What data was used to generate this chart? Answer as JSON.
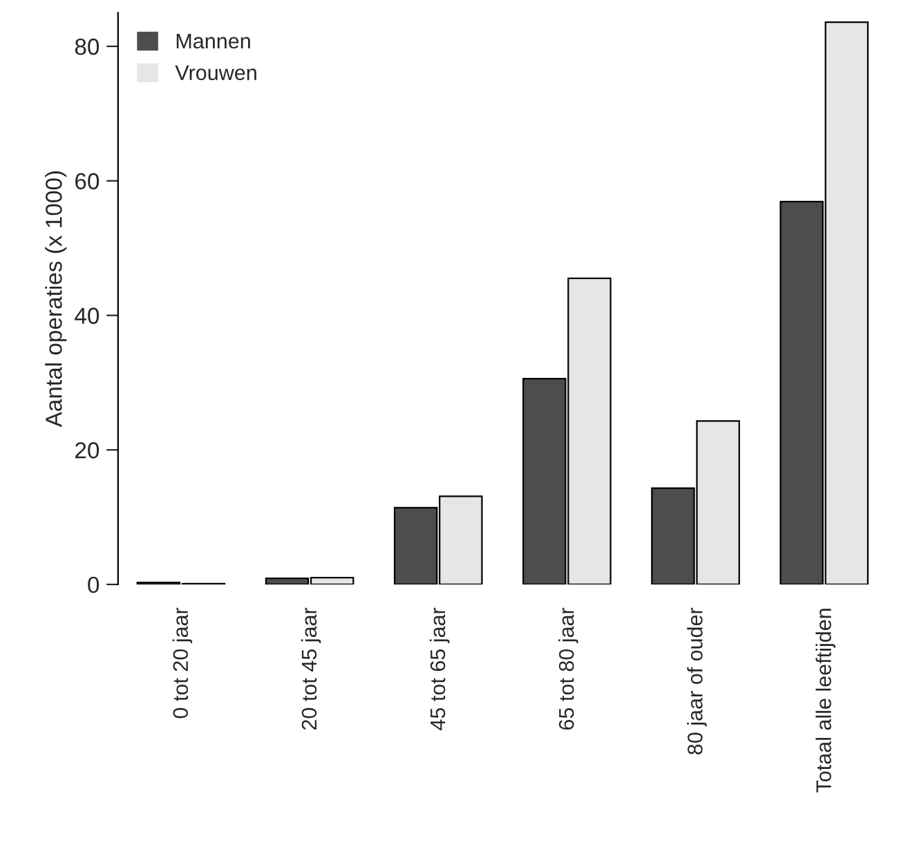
{
  "chart_data": {
    "type": "bar",
    "ylabel": "Aantal operaties (x 1000)",
    "categories": [
      "0 tot 20 jaar",
      "20 tot 45 jaar",
      "45 tot 65 jaar",
      "65 tot 80 jaar",
      "80 jaar of ouder",
      "Totaal alle leeftijden"
    ],
    "series": [
      {
        "name": "Mannen",
        "color": "#4d4d4d",
        "values": [
          0.3,
          0.9,
          11.4,
          30.6,
          14.3,
          56.9
        ]
      },
      {
        "name": "Vrouwen",
        "color": "#e6e6e6",
        "values": [
          0.1,
          1.0,
          13.1,
          45.5,
          24.3,
          83.6
        ]
      }
    ],
    "ylim": [
      0,
      85
    ],
    "yticks": [
      0,
      20,
      40,
      60,
      80
    ],
    "grid": false,
    "legend": "top left"
  }
}
